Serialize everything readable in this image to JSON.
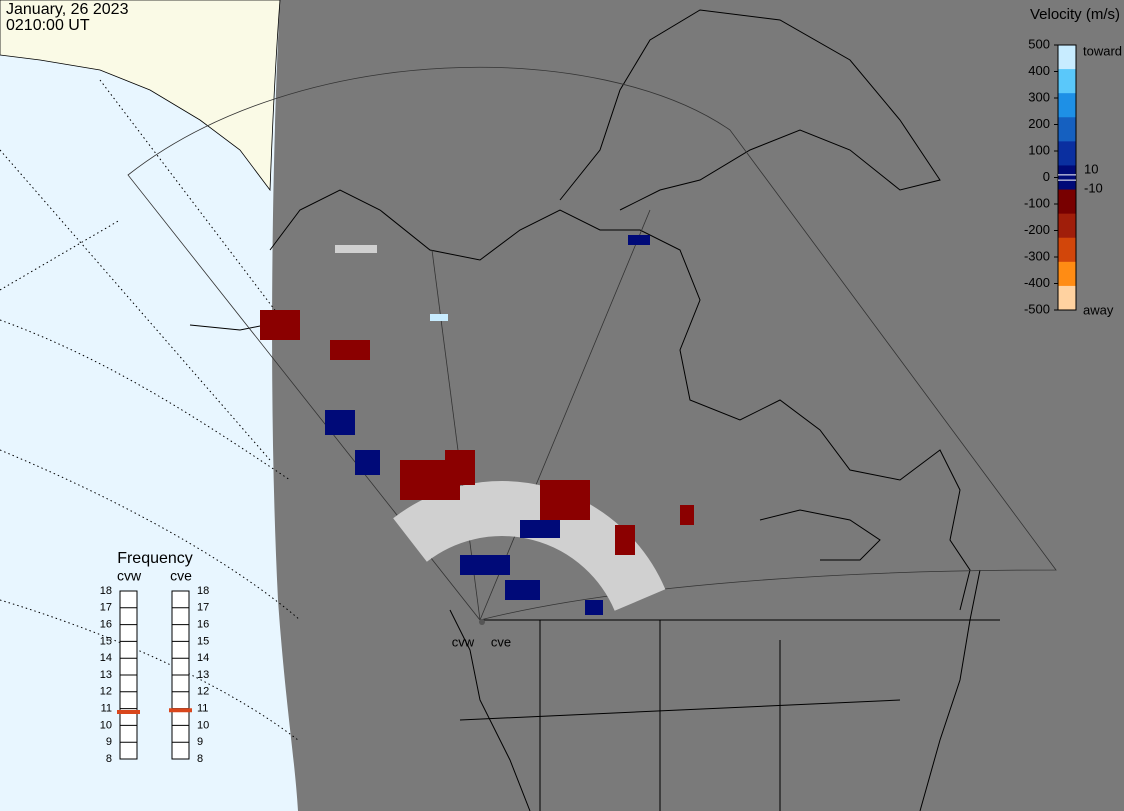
{
  "header": {
    "date": "January, 26 2023",
    "time": "0210:00 UT"
  },
  "velocity_scale": {
    "title": "Velocity (m/s)",
    "ylim": [
      -500,
      500
    ],
    "yticks": [
      500,
      400,
      300,
      200,
      100,
      0,
      -100,
      -200,
      -300,
      -400,
      -500
    ],
    "inner_ticks": [
      10,
      -10
    ],
    "top_label": "toward",
    "bottom_label": "away",
    "colors": [
      "#c8ecff",
      "#5ac8fa",
      "#1e90e6",
      "#1560c0",
      "#0a2fa0",
      "#000a78",
      "#780000",
      "#a01e0a",
      "#d2460a",
      "#ff8c14",
      "#ffd2a0"
    ]
  },
  "frequency": {
    "title": "Frequency",
    "ylim": [
      8,
      18
    ],
    "yticks": [
      8,
      9,
      10,
      11,
      12,
      13,
      14,
      15,
      16,
      17,
      18
    ],
    "marker_color": "#d9461c",
    "radars": [
      {
        "name": "cvw",
        "value": 10.8
      },
      {
        "name": "cve",
        "value": 10.9
      }
    ]
  }
}
